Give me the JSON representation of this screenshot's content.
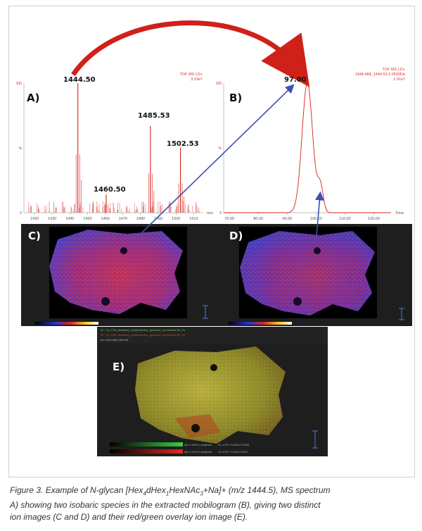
{
  "chart_data": [
    {
      "type": "line",
      "panel": "A)",
      "header": [
        "TOF MS LD+",
        "3.19e7"
      ],
      "xlabel": "m/z",
      "xlim": [
        1414,
        1515
      ],
      "x_ticks": [
        "1420",
        "1430",
        "1440",
        "1450",
        "1460",
        "1470",
        "1480",
        "1490",
        "1500",
        "1510"
      ],
      "y_ticks": [
        "100",
        "%",
        "0"
      ],
      "peaks": [
        {
          "label": "1444.50",
          "x": 1444.5,
          "y": 100
        },
        {
          "label": "1485.53",
          "x": 1485.5,
          "y": 67
        },
        {
          "label": "1502.53",
          "x": 1502.5,
          "y": 50
        },
        {
          "label": "1460.50",
          "x": 1460.5,
          "y": 14
        }
      ]
    },
    {
      "type": "line",
      "panel": "B)",
      "header": [
        "TOF MS LD+",
        "1444.484_1444.53 0.0500Da",
        "1.01e7"
      ],
      "xlabel": "Time",
      "xlim": [
        68,
        126
      ],
      "x_ticks": [
        "70.00",
        "80.00",
        "90.00",
        "100.00",
        "110.00",
        "120.00"
      ],
      "y_ticks": [
        "100",
        "%",
        "0"
      ],
      "peaks": [
        {
          "label": "97.00",
          "x": 97.0,
          "y": 100
        },
        {
          "x": 101.5,
          "y": 20
        }
      ]
    }
  ],
  "images": {
    "c_label": "C)",
    "d_label": "D)",
    "e_label": "E)",
    "e_lines": [
      "90 : 21_C3K_desalting_workflowlcase_glycans1_normalised.Re_Fe",
      "90 : 21_C3K_desalting_workflowlcase_glycans2_normalised.Re_Fe",
      "mo 1444.484-1444.53"
    ],
    "e_bottom": [
      "Min 0.0000 | weighted",
      "Min 0.0179 | weighted",
      "X1 1,00 Y 0.0045 0.0000",
      "X2 1,00 Y 0.045 0.0000"
    ]
  },
  "caption": {
    "line1_a": "Figure 3. Example of N-glycan [Hex",
    "line1_sub1": "4",
    "line1_b": "dHex",
    "line1_sub2": "1",
    "line1_c": "HexNAc",
    "line1_sub3": "3",
    "line1_d": "+Na]+ (m/z 1444.5), MS spectrum",
    "line2": "A) showing two isobaric species in the extracted mobilogram (B), giving two distinct",
    "line3": "ion images (C and D) and their red/green overlay ion image (E)."
  }
}
